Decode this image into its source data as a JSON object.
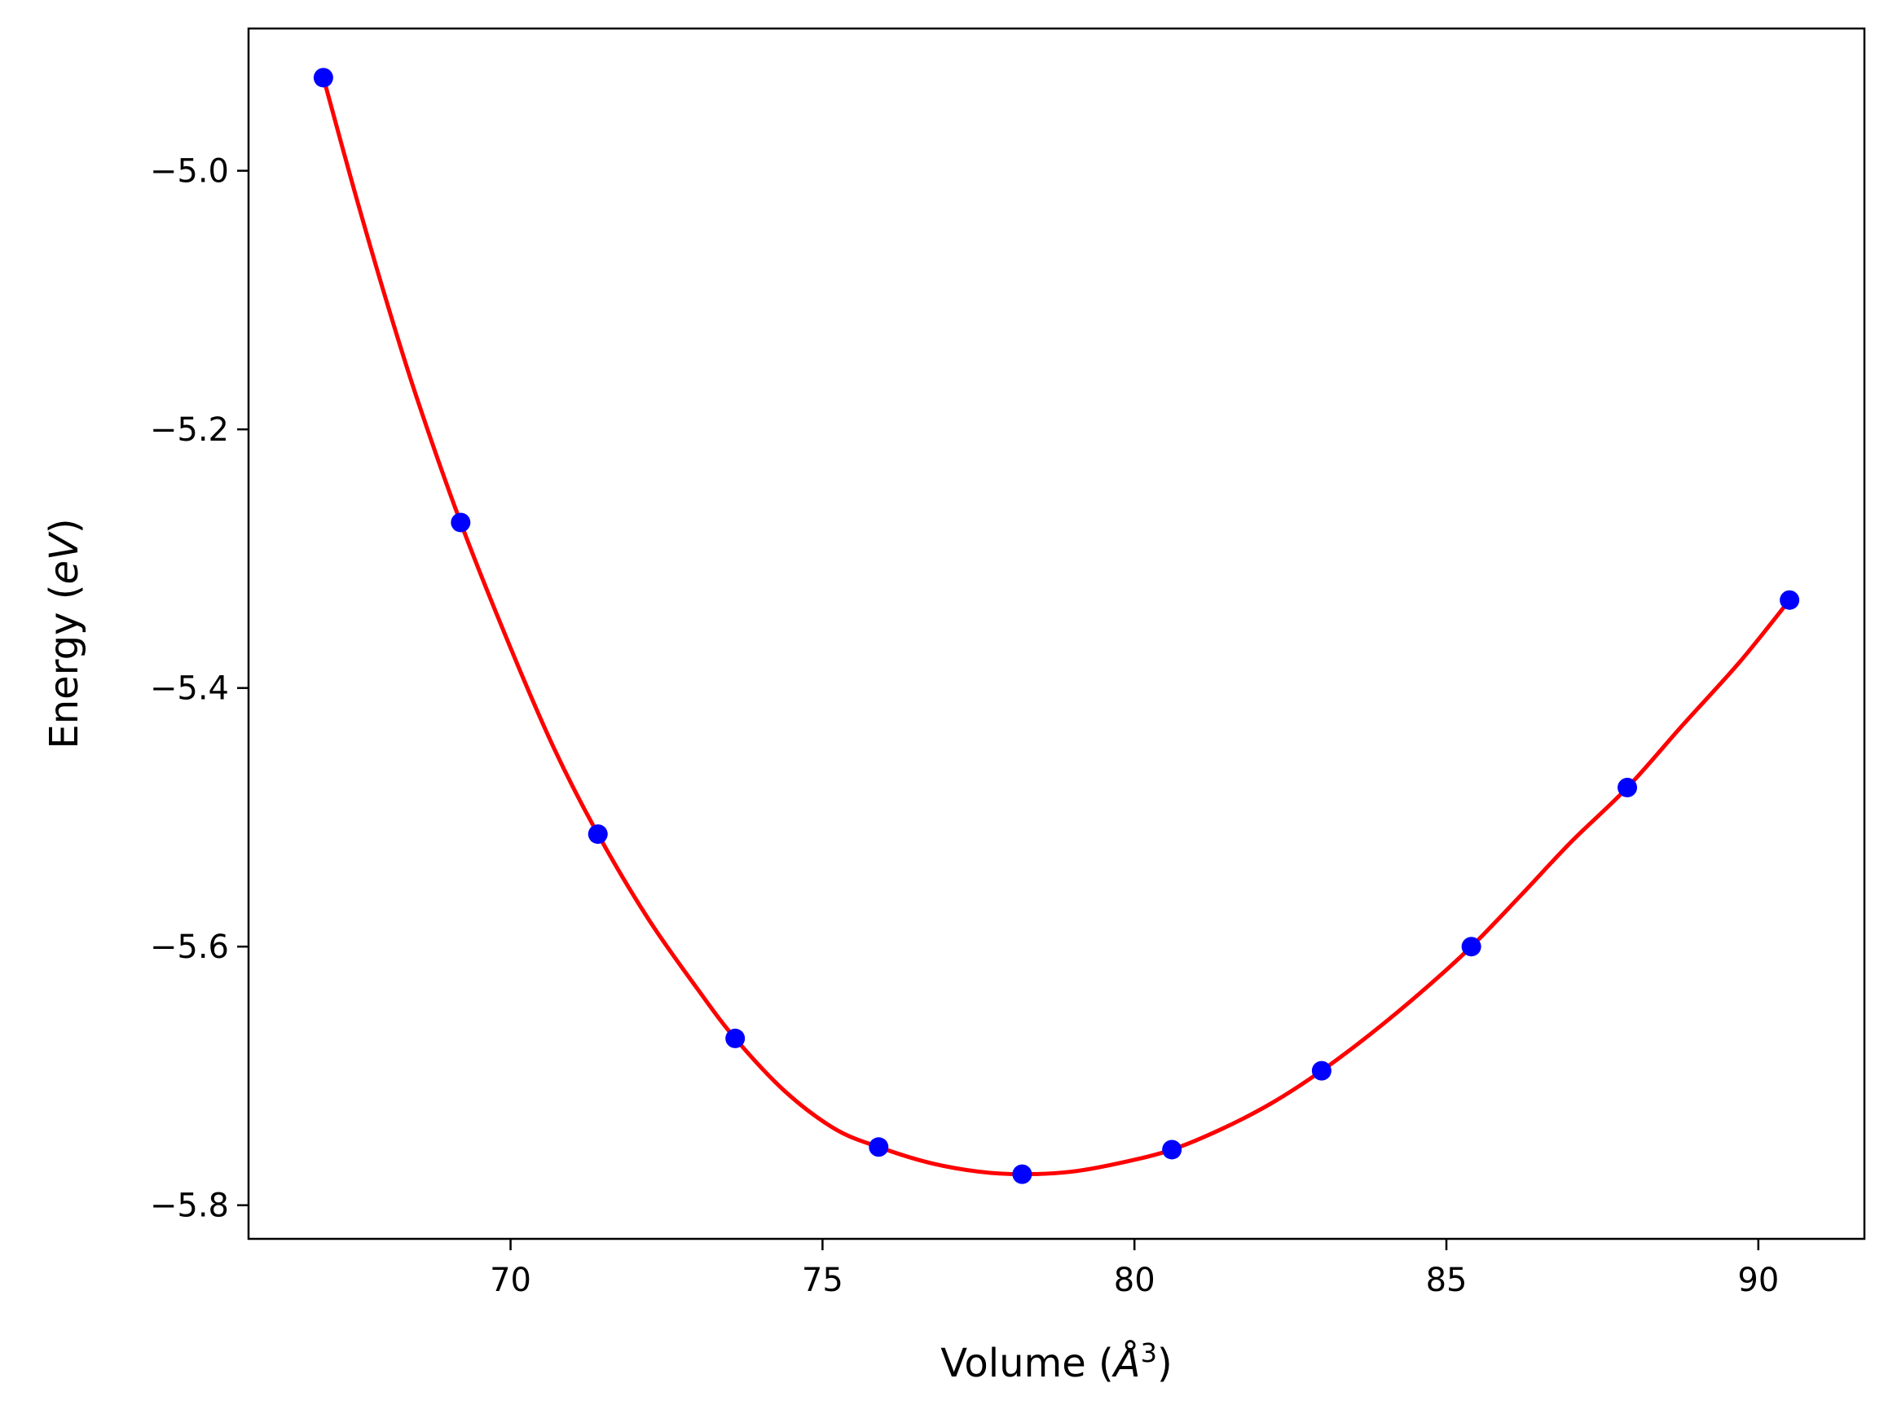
{
  "chart_data": {
    "type": "scatter",
    "title": "",
    "xlabel": "Volume (Å³)",
    "ylabel": "Energy (eV)",
    "xlabel_parts": {
      "prefix": "Volume (",
      "unit": "Å",
      "exponent": "3",
      "suffix": ")"
    },
    "ylabel_parts": {
      "prefix": "Energy (",
      "unit": "eV",
      "suffix": ")"
    },
    "xlim": [
      65.8,
      91.7
    ],
    "ylim": [
      -5.826,
      -4.89
    ],
    "xticks": [
      70,
      75,
      80,
      85,
      90
    ],
    "xtick_labels": [
      "70",
      "75",
      "80",
      "85",
      "90"
    ],
    "yticks": [
      -5.8,
      -5.6,
      -5.4,
      -5.2,
      -5.0
    ],
    "ytick_labels": [
      "−5.8",
      "−5.6",
      "−5.4",
      "−5.2",
      "−5.0"
    ],
    "grid": false,
    "legend": "none",
    "series": [
      {
        "kind": "points",
        "color": "#0000ff",
        "x": [
          67.0,
          69.2,
          71.4,
          73.6,
          75.9,
          78.2,
          80.6,
          83.0,
          85.4,
          87.9,
          90.5
        ],
        "y": [
          -4.928,
          -5.272,
          -5.513,
          -5.671,
          -5.755,
          -5.776,
          -5.757,
          -5.696,
          -5.6,
          -5.477,
          -5.332
        ]
      },
      {
        "kind": "fit-curve",
        "color": "#ff0000",
        "x": [
          67.0,
          67.5,
          68.0,
          68.5,
          69.2,
          70.0,
          70.7,
          71.4,
          72.2,
          73.0,
          73.6,
          74.4,
          75.2,
          75.9,
          76.7,
          77.5,
          78.2,
          79.0,
          79.8,
          80.6,
          81.4,
          82.2,
          83.0,
          83.8,
          84.6,
          85.4,
          86.2,
          87.0,
          87.9,
          88.8,
          89.7,
          90.5
        ],
        "y": [
          -4.928,
          -5.016,
          -5.099,
          -5.176,
          -5.272,
          -5.369,
          -5.447,
          -5.513,
          -5.578,
          -5.633,
          -5.671,
          -5.712,
          -5.741,
          -5.755,
          -5.767,
          -5.774,
          -5.776,
          -5.774,
          -5.767,
          -5.757,
          -5.741,
          -5.721,
          -5.696,
          -5.667,
          -5.635,
          -5.6,
          -5.56,
          -5.519,
          -5.477,
          -5.428,
          -5.38,
          -5.332
        ]
      }
    ]
  }
}
